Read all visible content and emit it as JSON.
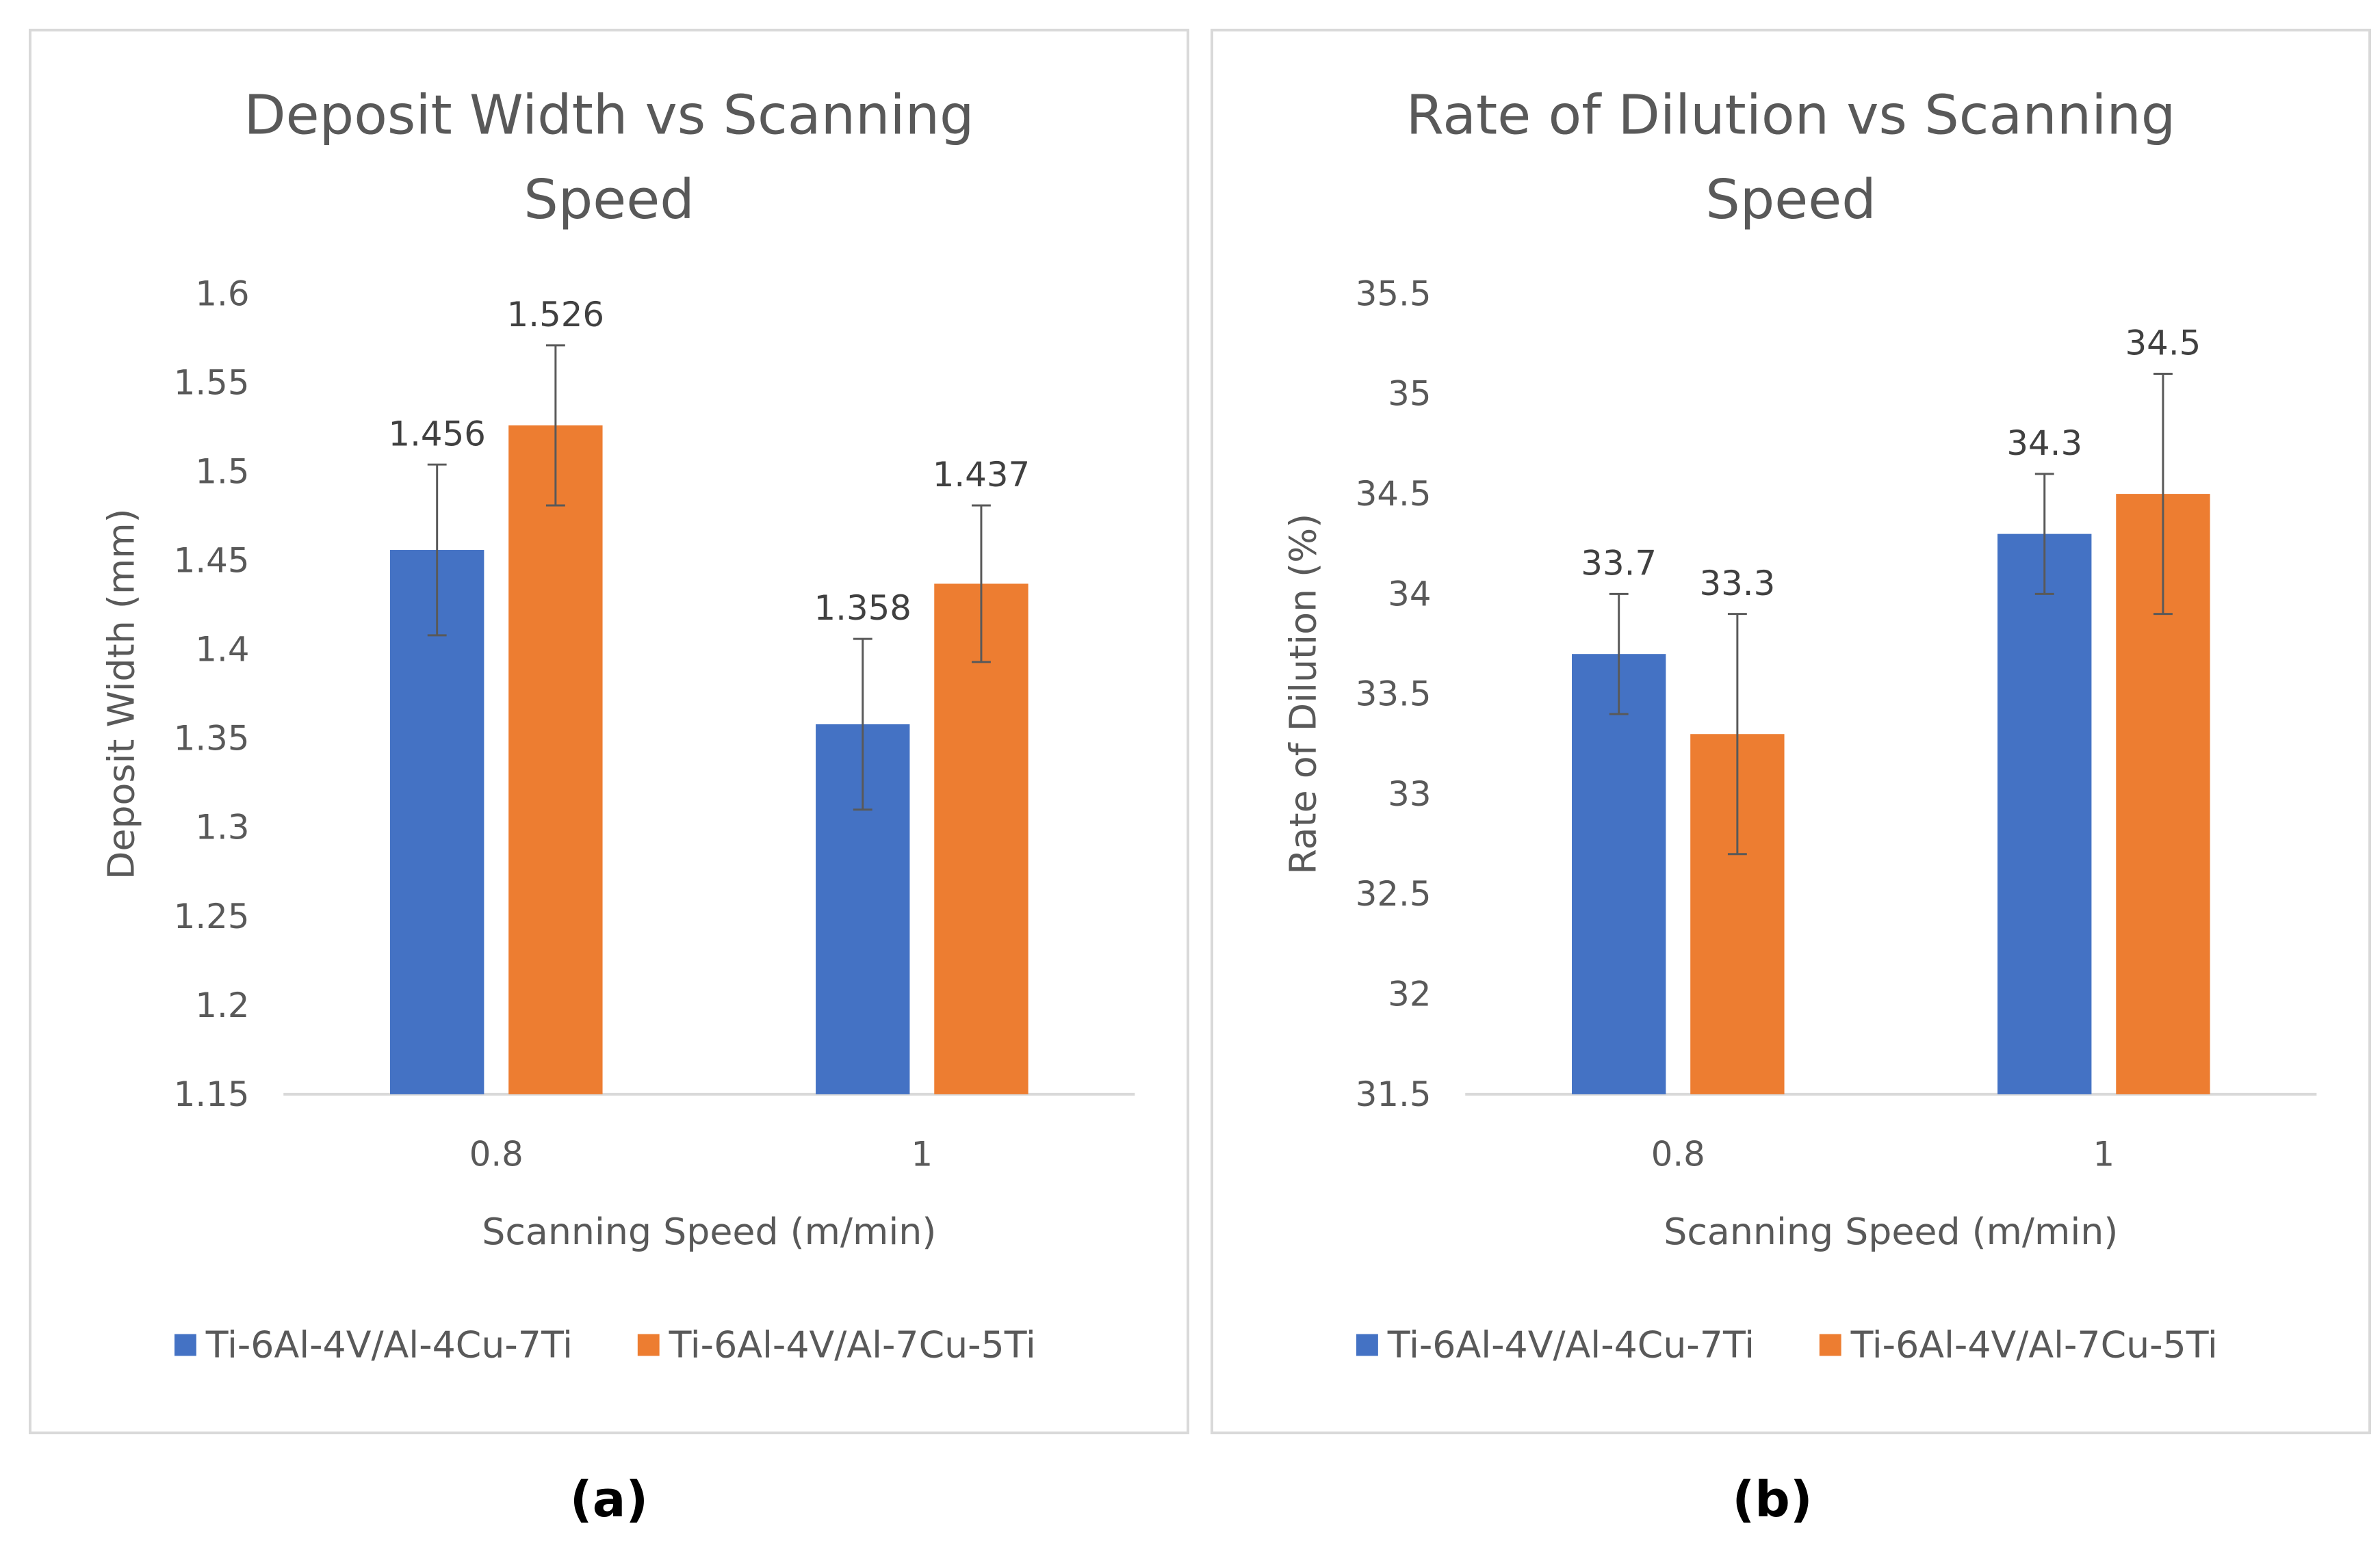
{
  "chart_data": [
    {
      "type": "bar",
      "title": "Deposit Width vs Scanning Speed",
      "title_lines": [
        "Deposit Width vs Scanning",
        "Speed"
      ],
      "xlabel": "Scanning Speed  (m/min)",
      "ylabel": "Deposit Width (mm)",
      "categories": [
        "0.8",
        "1"
      ],
      "ylim": [
        1.15,
        1.6
      ],
      "yticks": [
        "1.15",
        "1.2",
        "1.25",
        "1.3",
        "1.35",
        "1.4",
        "1.45",
        "1.5",
        "1.55",
        "1.6"
      ],
      "grid": false,
      "legend_position": "bottom",
      "series": [
        {
          "name": "Ti-6Al-4V/Al-4Cu-7Ti",
          "color": "#4472c4",
          "values": [
            1.456,
            1.358
          ],
          "labels": [
            "1.456",
            "1.358"
          ],
          "error": [
            0.048,
            0.048
          ]
        },
        {
          "name": "Ti-6Al-4V/Al-7Cu-5Ti",
          "color": "#ed7d31",
          "values": [
            1.526,
            1.437
          ],
          "labels": [
            "1.526",
            "1.437"
          ],
          "error": [
            0.045,
            0.044
          ]
        }
      ],
      "caption": "(a)"
    },
    {
      "type": "bar",
      "title": "Rate of Dilution vs Scanning Speed",
      "title_lines": [
        "Rate of Dilution vs Scanning",
        "Speed"
      ],
      "xlabel": "Scanning Speed  (m/min)",
      "ylabel": "Rate of Dilution (%)",
      "categories": [
        "0.8",
        "1"
      ],
      "ylim": [
        31.5,
        35.5
      ],
      "yticks": [
        "31.5",
        "32",
        "32.5",
        "33",
        "33.5",
        "34",
        "34.5",
        "35",
        "35.5"
      ],
      "grid": false,
      "legend_position": "bottom",
      "series": [
        {
          "name": "Ti-6Al-4V/Al-4Cu-7Ti",
          "color": "#4472c4",
          "values": [
            33.7,
            34.3
          ],
          "labels": [
            "33.7",
            "34.3"
          ],
          "error": [
            0.3,
            0.3
          ]
        },
        {
          "name": "Ti-6Al-4V/Al-7Cu-5Ti",
          "color": "#ed7d31",
          "values": [
            33.3,
            34.5
          ],
          "labels": [
            "33.3",
            "34.5"
          ],
          "error": [
            0.6,
            0.6
          ]
        }
      ],
      "caption": "(b)"
    }
  ]
}
